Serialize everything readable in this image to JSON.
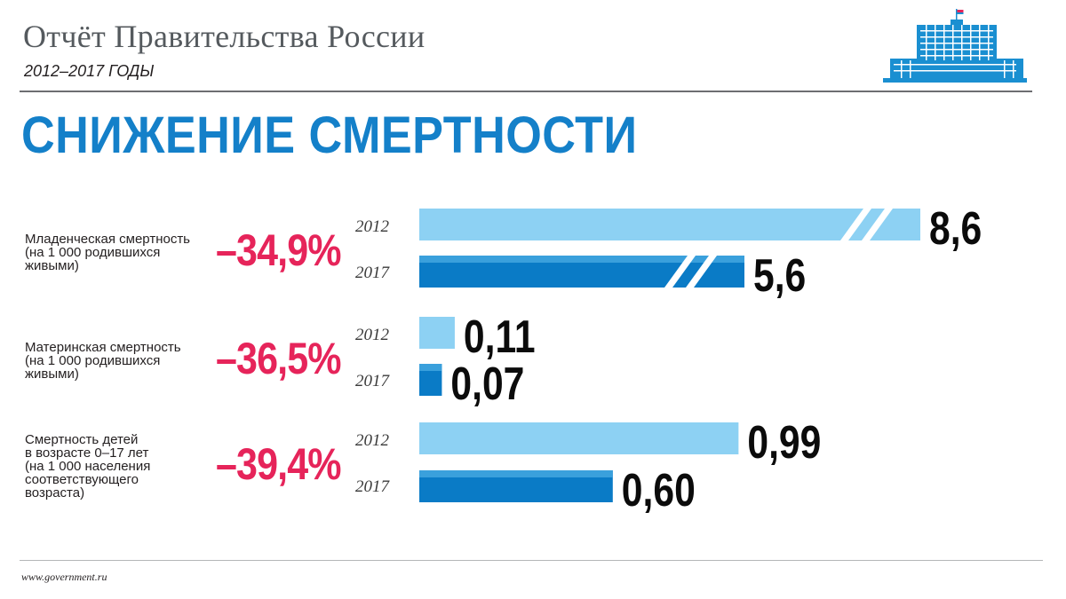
{
  "header": {
    "report_title": "Отчёт Правительства России",
    "years": "2012–2017 ГОДЫ"
  },
  "main_title": "СНИЖЕНИЕ СМЕРТНОСТИ",
  "footer": {
    "site": "www.government.ru"
  },
  "colors": {
    "accent_blue": "#1480c9",
    "light_bar": "#8dd1f3",
    "dark_bar": "#0a7bc6",
    "percent_red": "#e6245a"
  },
  "chart_data": {
    "type": "bar",
    "orientation": "horizontal",
    "title": "СНИЖЕНИЕ СМЕРТНОСТИ",
    "legend": "none",
    "grid": false,
    "groups": [
      {
        "label_lines": [
          "Младенческая смертность",
          "(на 1 000 родившихся",
          "живыми)"
        ],
        "change": "–34,9%",
        "broken_axis": true,
        "bars": [
          {
            "year": "2012",
            "value": 8.6,
            "label": "8,6"
          },
          {
            "year": "2017",
            "value": 5.6,
            "label": "5,6"
          }
        ]
      },
      {
        "label_lines": [
          "Материнская смертность",
          "(на 1 000 родившихся",
          "живыми)"
        ],
        "change": "–36,5%",
        "broken_axis": false,
        "bars": [
          {
            "year": "2012",
            "value": 0.11,
            "label": "0,11"
          },
          {
            "year": "2017",
            "value": 0.07,
            "label": "0,07"
          }
        ]
      },
      {
        "label_lines": [
          "Смертность детей",
          "в возрасте 0–17 лет",
          "(на 1 000 населения",
          "соответствующего",
          "возраста)"
        ],
        "change": "–39,4%",
        "broken_axis": false,
        "bars": [
          {
            "year": "2012",
            "value": 0.99,
            "label": "0,99"
          },
          {
            "year": "2017",
            "value": 0.6,
            "label": "0,60"
          }
        ]
      }
    ]
  }
}
